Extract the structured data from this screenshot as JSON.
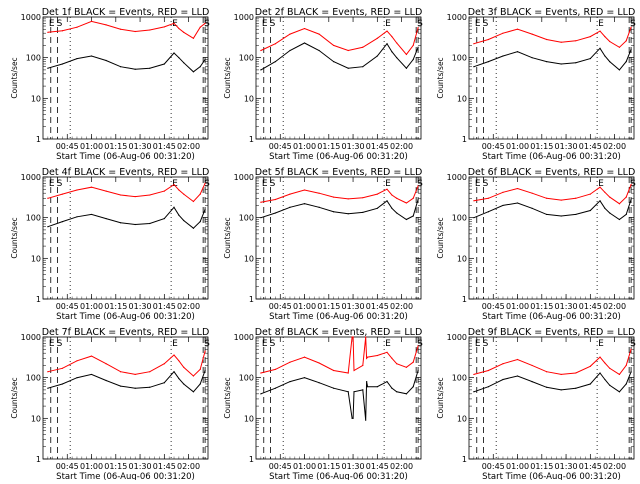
{
  "chart_data": [
    {
      "type": "line",
      "title": "Det 1f BLACK = Events, RED = LLD",
      "xlabel": "Start Time (06-Aug-06 00:31:20)",
      "ylabel": "Counts/sec",
      "yscale": "log",
      "ylim": [
        1,
        1000
      ],
      "xlim": [
        0.5,
        2.2
      ],
      "xtick_labels": [
        "00:45",
        "01:00",
        "01:15",
        "01:30",
        "01:45",
        "02:00"
      ],
      "ytick_labels": [
        "1",
        "10",
        "100",
        "1000"
      ],
      "markers": [
        "E",
        "S",
        "E",
        "S"
      ],
      "series": [
        {
          "color": "#ff0000",
          "x": [
            0.55,
            0.7,
            0.85,
            1.0,
            1.15,
            1.3,
            1.45,
            1.6,
            1.75,
            1.85,
            1.9,
            1.95,
            2.05,
            2.12,
            2.17
          ],
          "y": [
            420,
            460,
            560,
            780,
            640,
            500,
            440,
            480,
            570,
            700,
            520,
            420,
            300,
            560,
            700
          ]
        },
        {
          "color": "#000000",
          "x": [
            0.55,
            0.7,
            0.85,
            1.0,
            1.15,
            1.3,
            1.45,
            1.6,
            1.75,
            1.85,
            1.9,
            1.95,
            2.05,
            2.12,
            2.17
          ],
          "y": [
            55,
            70,
            95,
            110,
            85,
            60,
            52,
            55,
            70,
            130,
            100,
            75,
            45,
            60,
            90
          ]
        }
      ]
    },
    {
      "type": "line",
      "title": "Det 2f BLACK = Events, RED = LLD",
      "xlabel": "Start Time (06-Aug-06 00:31:20)",
      "ylabel": "Counts/sec",
      "yscale": "log",
      "ylim": [
        1,
        1000
      ],
      "xlim": [
        0.5,
        2.2
      ],
      "xtick_labels": [
        "00:45",
        "01:00",
        "01:15",
        "01:30",
        "01:45",
        "02:00"
      ],
      "ytick_labels": [
        "1",
        "10",
        "100",
        "1000"
      ],
      "markers": [
        "E",
        "S",
        "E",
        "S"
      ],
      "series": [
        {
          "color": "#ff0000",
          "x": [
            0.55,
            0.7,
            0.85,
            1.0,
            1.15,
            1.3,
            1.45,
            1.6,
            1.75,
            1.85,
            1.9,
            1.95,
            2.05,
            2.12,
            2.17
          ],
          "y": [
            150,
            220,
            380,
            520,
            380,
            200,
            150,
            180,
            300,
            450,
            330,
            230,
            120,
            200,
            550
          ]
        },
        {
          "color": "#000000",
          "x": [
            0.55,
            0.7,
            0.85,
            1.0,
            1.15,
            1.3,
            1.45,
            1.6,
            1.75,
            1.85,
            1.9,
            1.95,
            2.05,
            2.12,
            2.17
          ],
          "y": [
            50,
            80,
            150,
            230,
            150,
            80,
            55,
            60,
            110,
            220,
            140,
            100,
            55,
            90,
            180
          ]
        }
      ]
    },
    {
      "type": "line",
      "title": "Det 3f BLACK = Events, RED = LLD",
      "xlabel": "Start Time (06-Aug-06 00:31:20)",
      "ylabel": "Counts/sec",
      "yscale": "log",
      "ylim": [
        1,
        1000
      ],
      "xlim": [
        0.5,
        2.2
      ],
      "xtick_labels": [
        "00:45",
        "01:00",
        "01:15",
        "01:30",
        "01:45",
        "02:00"
      ],
      "ytick_labels": [
        "1",
        "10",
        "100",
        "1000"
      ],
      "markers": [
        "E",
        "S",
        "E",
        "S"
      ],
      "series": [
        {
          "color": "#ff0000",
          "x": [
            0.55,
            0.7,
            0.85,
            1.0,
            1.15,
            1.3,
            1.45,
            1.6,
            1.75,
            1.85,
            1.9,
            1.95,
            2.05,
            2.12,
            2.17
          ],
          "y": [
            220,
            280,
            400,
            500,
            380,
            280,
            240,
            260,
            330,
            450,
            330,
            250,
            180,
            260,
            560
          ]
        },
        {
          "color": "#000000",
          "x": [
            0.55,
            0.7,
            0.85,
            1.0,
            1.15,
            1.3,
            1.45,
            1.6,
            1.75,
            1.85,
            1.9,
            1.95,
            2.05,
            2.12,
            2.17
          ],
          "y": [
            60,
            80,
            110,
            140,
            100,
            80,
            70,
            75,
            95,
            170,
            110,
            80,
            50,
            80,
            160
          ]
        }
      ]
    },
    {
      "type": "line",
      "title": "Det 4f BLACK = Events, RED = LLD",
      "xlabel": "Start Time (06-Aug-06 00:31:20)",
      "ylabel": "Counts/sec",
      "yscale": "log",
      "ylim": [
        1,
        1000
      ],
      "xlim": [
        0.5,
        2.2
      ],
      "xtick_labels": [
        "00:45",
        "01:00",
        "01:15",
        "01:30",
        "01:45",
        "02:00"
      ],
      "ytick_labels": [
        "1",
        "10",
        "100",
        "1000"
      ],
      "markers": [
        "E",
        "S",
        "E",
        "S"
      ],
      "series": [
        {
          "color": "#ff0000",
          "x": [
            0.55,
            0.7,
            0.85,
            1.0,
            1.15,
            1.3,
            1.45,
            1.6,
            1.75,
            1.85,
            1.9,
            1.95,
            2.05,
            2.12,
            2.17
          ],
          "y": [
            300,
            380,
            480,
            560,
            450,
            360,
            330,
            360,
            450,
            650,
            480,
            380,
            250,
            380,
            700
          ]
        },
        {
          "color": "#000000",
          "x": [
            0.55,
            0.7,
            0.85,
            1.0,
            1.15,
            1.3,
            1.45,
            1.6,
            1.75,
            1.85,
            1.9,
            1.95,
            2.05,
            2.12,
            2.17
          ],
          "y": [
            60,
            80,
            105,
            120,
            95,
            75,
            68,
            72,
            95,
            180,
            115,
            85,
            55,
            80,
            160
          ]
        }
      ]
    },
    {
      "type": "line",
      "title": "Det 5f BLACK = Events, RED = LLD",
      "xlabel": "Start Time (06-Aug-06 00:31:20)",
      "ylabel": "Counts/sec",
      "yscale": "log",
      "ylim": [
        1,
        1000
      ],
      "xlim": [
        0.5,
        2.2
      ],
      "xtick_labels": [
        "00:45",
        "01:00",
        "01:15",
        "01:30",
        "01:45",
        "02:00"
      ],
      "ytick_labels": [
        "1",
        "10",
        "100",
        "1000"
      ],
      "markers": [
        "E",
        "S",
        "E",
        "S"
      ],
      "series": [
        {
          "color": "#ff0000",
          "x": [
            0.55,
            0.7,
            0.85,
            1.0,
            1.15,
            1.3,
            1.45,
            1.6,
            1.75,
            1.85,
            1.9,
            1.95,
            2.05,
            2.12,
            2.17
          ],
          "y": [
            240,
            280,
            380,
            480,
            400,
            320,
            290,
            310,
            380,
            500,
            360,
            300,
            230,
            300,
            600
          ]
        },
        {
          "color": "#000000",
          "x": [
            0.55,
            0.7,
            0.85,
            1.0,
            1.15,
            1.3,
            1.45,
            1.6,
            1.75,
            1.85,
            1.9,
            1.95,
            2.05,
            2.12,
            2.17
          ],
          "y": [
            100,
            130,
            180,
            220,
            180,
            140,
            125,
            135,
            170,
            260,
            170,
            130,
            90,
            110,
            280
          ]
        }
      ]
    },
    {
      "type": "line",
      "title": "Det 6f BLACK = Events, RED = LLD",
      "xlabel": "Start Time (06-Aug-06 00:31:20)",
      "ylabel": "Counts/sec",
      "yscale": "log",
      "ylim": [
        1,
        1000
      ],
      "xlim": [
        0.5,
        2.2
      ],
      "xtick_labels": [
        "00:45",
        "01:00",
        "01:15",
        "01:30",
        "01:45",
        "02:00"
      ],
      "ytick_labels": [
        "1",
        "10",
        "100",
        "1000"
      ],
      "markers": [
        "E",
        "S",
        "E",
        "S"
      ],
      "series": [
        {
          "color": "#ff0000",
          "x": [
            0.55,
            0.7,
            0.85,
            1.0,
            1.15,
            1.3,
            1.45,
            1.6,
            1.75,
            1.85,
            1.9,
            1.95,
            2.05,
            2.12,
            2.17
          ],
          "y": [
            260,
            300,
            420,
            520,
            400,
            300,
            270,
            300,
            380,
            560,
            420,
            320,
            220,
            320,
            650
          ]
        },
        {
          "color": "#000000",
          "x": [
            0.55,
            0.7,
            0.85,
            1.0,
            1.15,
            1.3,
            1.45,
            1.6,
            1.75,
            1.85,
            1.9,
            1.95,
            2.05,
            2.12,
            2.17
          ],
          "y": [
            100,
            140,
            200,
            230,
            170,
            120,
            110,
            120,
            150,
            260,
            170,
            130,
            90,
            120,
            280
          ]
        }
      ]
    },
    {
      "type": "line",
      "title": "Det 7f BLACK = Events, RED = LLD",
      "xlabel": "Start Time (06-Aug-06 00:31:20)",
      "ylabel": "Counts/sec",
      "yscale": "log",
      "ylim": [
        1,
        1000
      ],
      "xlim": [
        0.5,
        2.2
      ],
      "xtick_labels": [
        "00:45",
        "01:00",
        "01:15",
        "01:30",
        "01:45",
        "02:00"
      ],
      "ytick_labels": [
        "1",
        "10",
        "100",
        "1000"
      ],
      "markers": [
        "E",
        "S",
        "E",
        "S"
      ],
      "series": [
        {
          "color": "#ff0000",
          "x": [
            0.55,
            0.7,
            0.85,
            1.0,
            1.15,
            1.3,
            1.45,
            1.6,
            1.75,
            1.85,
            1.9,
            1.95,
            2.05,
            2.12,
            2.17
          ],
          "y": [
            140,
            170,
            260,
            340,
            220,
            140,
            120,
            140,
            220,
            360,
            260,
            180,
            110,
            160,
            450
          ]
        },
        {
          "color": "#000000",
          "x": [
            0.55,
            0.7,
            0.85,
            1.0,
            1.15,
            1.3,
            1.45,
            1.6,
            1.75,
            1.85,
            1.9,
            1.95,
            2.05,
            2.12,
            2.17
          ],
          "y": [
            55,
            70,
            100,
            120,
            85,
            62,
            55,
            58,
            75,
            140,
            95,
            70,
            45,
            70,
            150
          ]
        }
      ]
    },
    {
      "type": "line",
      "title": "Det 8f BLACK = Events, RED = LLD",
      "xlabel": "Start Time (06-Aug-06 00:31:20)",
      "ylabel": "Counts/sec",
      "yscale": "log",
      "ylim": [
        1,
        1000
      ],
      "xlim": [
        0.5,
        2.2
      ],
      "xtick_labels": [
        "00:45",
        "01:00",
        "01:15",
        "01:30",
        "01:45",
        "02:00"
      ],
      "ytick_labels": [
        "1",
        "10",
        "100",
        "1000"
      ],
      "markers": [
        "E",
        "S",
        "E",
        "S"
      ],
      "series": [
        {
          "color": "#ff0000",
          "x": [
            0.55,
            0.7,
            0.85,
            1.0,
            1.15,
            1.3,
            1.45,
            1.49,
            1.5,
            1.51,
            1.6,
            1.63,
            1.64,
            1.65,
            1.75,
            1.85,
            1.9,
            1.95,
            2.05,
            2.12,
            2.17
          ],
          "y": [
            130,
            160,
            240,
            320,
            230,
            150,
            130,
            1000,
            1000,
            150,
            200,
            1000,
            300,
            320,
            350,
            420,
            300,
            220,
            180,
            240,
            600
          ]
        },
        {
          "color": "#000000",
          "x": [
            0.55,
            0.7,
            0.85,
            1.0,
            1.15,
            1.3,
            1.45,
            1.49,
            1.5,
            1.51,
            1.6,
            1.63,
            1.64,
            1.65,
            1.75,
            1.85,
            1.9,
            1.95,
            2.05,
            2.12,
            2.17
          ],
          "y": [
            40,
            55,
            80,
            100,
            75,
            55,
            45,
            10,
            10,
            45,
            50,
            9,
            80,
            60,
            60,
            80,
            55,
            45,
            40,
            60,
            150
          ]
        }
      ]
    },
    {
      "type": "line",
      "title": "Det 9f BLACK = Events, RED = LLD",
      "xlabel": "Start Time (06-Aug-06 00:31:20)",
      "ylabel": "Counts/sec",
      "yscale": "log",
      "ylim": [
        1,
        1000
      ],
      "xlim": [
        0.5,
        2.2
      ],
      "xtick_labels": [
        "00:45",
        "01:00",
        "01:15",
        "01:30",
        "01:45",
        "02:00"
      ],
      "ytick_labels": [
        "1",
        "10",
        "100",
        "1000"
      ],
      "markers": [
        "E",
        "S",
        "E",
        "S"
      ],
      "series": [
        {
          "color": "#ff0000",
          "x": [
            0.55,
            0.7,
            0.85,
            1.0,
            1.15,
            1.3,
            1.45,
            1.6,
            1.75,
            1.85,
            1.9,
            1.95,
            2.05,
            2.12,
            2.17
          ],
          "y": [
            120,
            150,
            220,
            280,
            200,
            140,
            120,
            130,
            190,
            320,
            230,
            170,
            120,
            200,
            500
          ]
        },
        {
          "color": "#000000",
          "x": [
            0.55,
            0.7,
            0.85,
            1.0,
            1.15,
            1.3,
            1.45,
            1.6,
            1.75,
            1.85,
            1.9,
            1.95,
            2.05,
            2.12,
            2.17
          ],
          "y": [
            45,
            60,
            90,
            110,
            80,
            58,
            50,
            55,
            70,
            130,
            90,
            65,
            45,
            70,
            140
          ]
        }
      ]
    }
  ]
}
